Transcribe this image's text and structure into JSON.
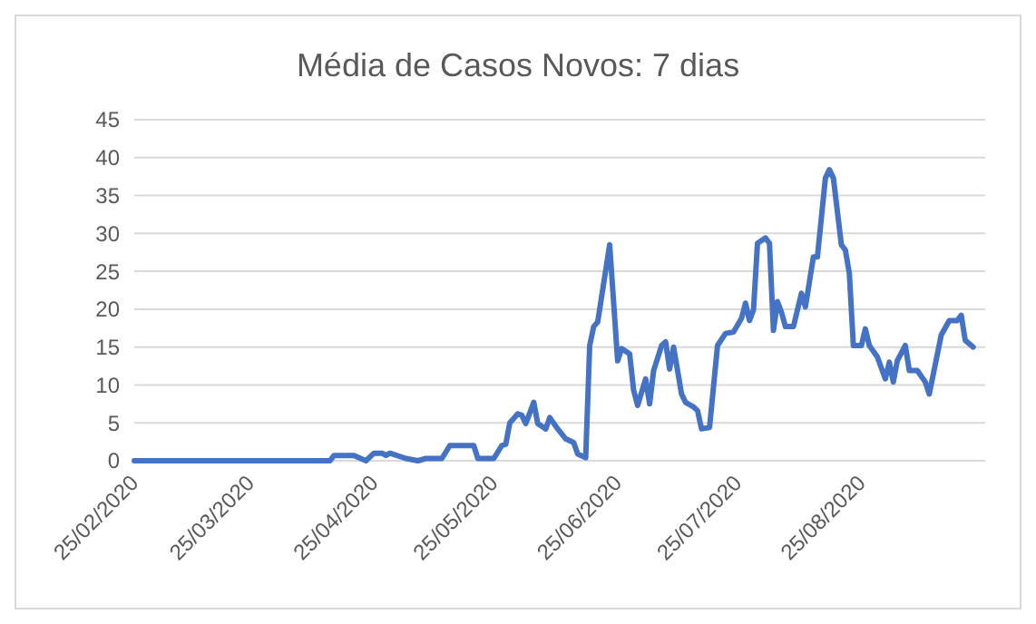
{
  "chart_data": {
    "type": "line",
    "title": "Média de Casos Novos: 7 dias",
    "color": "#4472c4",
    "grid": "y",
    "xlim": [
      "2020-02-25",
      "2020-09-25"
    ],
    "xticks": [
      {
        "value": "2020-02-25",
        "label": "25/02/2020"
      },
      {
        "value": "2020-03-25",
        "label": "25/03/2020"
      },
      {
        "value": "2020-04-25",
        "label": "25/04/2020"
      },
      {
        "value": "2020-05-25",
        "label": "25/05/2020"
      },
      {
        "value": "2020-06-25",
        "label": "25/06/2020"
      },
      {
        "value": "2020-07-25",
        "label": "25/07/2020"
      },
      {
        "value": "2020-08-25",
        "label": "25/08/2020"
      }
    ],
    "ylim": [
      0,
      45
    ],
    "yticks": [
      0,
      5,
      10,
      15,
      20,
      25,
      30,
      35,
      40,
      45
    ],
    "x": [
      "2020-02-25",
      "2020-04-14",
      "2020-04-15",
      "2020-04-20",
      "2020-04-23",
      "2020-04-25",
      "2020-04-27",
      "2020-04-28",
      "2020-04-29",
      "2020-05-03",
      "2020-05-06",
      "2020-05-08",
      "2020-05-12",
      "2020-05-14",
      "2020-05-20",
      "2020-05-21",
      "2020-05-25",
      "2020-05-27",
      "2020-05-28",
      "2020-05-29",
      "2020-05-31",
      "2020-06-01",
      "2020-06-02",
      "2020-06-04",
      "2020-06-05",
      "2020-06-07",
      "2020-06-08",
      "2020-06-10",
      "2020-06-12",
      "2020-06-14",
      "2020-06-15",
      "2020-06-17",
      "2020-06-18",
      "2020-06-19",
      "2020-06-20",
      "2020-06-23",
      "2020-06-25",
      "2020-06-26",
      "2020-06-28",
      "2020-06-29",
      "2020-06-30",
      "2020-07-02",
      "2020-07-03",
      "2020-07-04",
      "2020-07-06",
      "2020-07-07",
      "2020-07-08",
      "2020-07-09",
      "2020-07-11",
      "2020-07-12",
      "2020-07-14",
      "2020-07-15",
      "2020-07-16",
      "2020-07-18",
      "2020-07-20",
      "2020-07-22",
      "2020-07-24",
      "2020-07-26",
      "2020-07-27",
      "2020-07-28",
      "2020-07-29",
      "2020-07-30",
      "2020-08-01",
      "2020-08-02",
      "2020-08-03",
      "2020-08-04",
      "2020-08-05",
      "2020-08-06",
      "2020-08-08",
      "2020-08-10",
      "2020-08-11",
      "2020-08-12",
      "2020-08-13",
      "2020-08-14",
      "2020-08-16",
      "2020-08-17",
      "2020-08-18",
      "2020-08-20",
      "2020-08-21",
      "2020-08-22",
      "2020-08-23",
      "2020-08-24",
      "2020-08-25",
      "2020-08-26",
      "2020-08-27",
      "2020-08-29",
      "2020-08-31",
      "2020-09-01",
      "2020-09-02",
      "2020-09-03",
      "2020-09-05",
      "2020-09-06",
      "2020-09-08",
      "2020-09-10",
      "2020-09-11",
      "2020-09-14",
      "2020-09-16",
      "2020-09-18",
      "2020-09-19",
      "2020-09-20",
      "2020-09-22"
    ],
    "values": [
      0,
      0,
      0.7,
      0.7,
      0,
      1,
      1,
      0.7,
      1,
      0.3,
      0,
      0.3,
      0.3,
      2,
      2,
      0.3,
      0.3,
      2,
      2.2,
      5,
      6.2,
      6,
      4.9,
      7.7,
      4.9,
      4.2,
      5.7,
      4.2,
      2.9,
      2.4,
      0.9,
      0.4,
      15.2,
      17.7,
      18.3,
      28.5,
      13.2,
      14.8,
      14.1,
      9.3,
      7.3,
      10.8,
      7.5,
      11.9,
      15.2,
      15.7,
      12.1,
      15,
      8.8,
      7.7,
      7.1,
      6.6,
      4.2,
      4.4,
      15.2,
      16.8,
      17,
      18.8,
      20.8,
      18.5,
      19.9,
      28.7,
      29.4,
      28.7,
      17.2,
      21,
      19.6,
      17.7,
      17.7,
      22.1,
      20.3,
      23.6,
      26.9,
      26.9,
      37.3,
      38.4,
      37.3,
      28.5,
      27.8,
      24.7,
      15.2,
      15.2,
      15.2,
      17.4,
      15.2,
      13.7,
      10.8,
      13,
      10.4,
      13.2,
      15.2,
      11.9,
      11.9,
      10.4,
      8.8,
      16.6,
      18.5,
      18.5,
      19.2,
      15.9,
      15
    ]
  }
}
